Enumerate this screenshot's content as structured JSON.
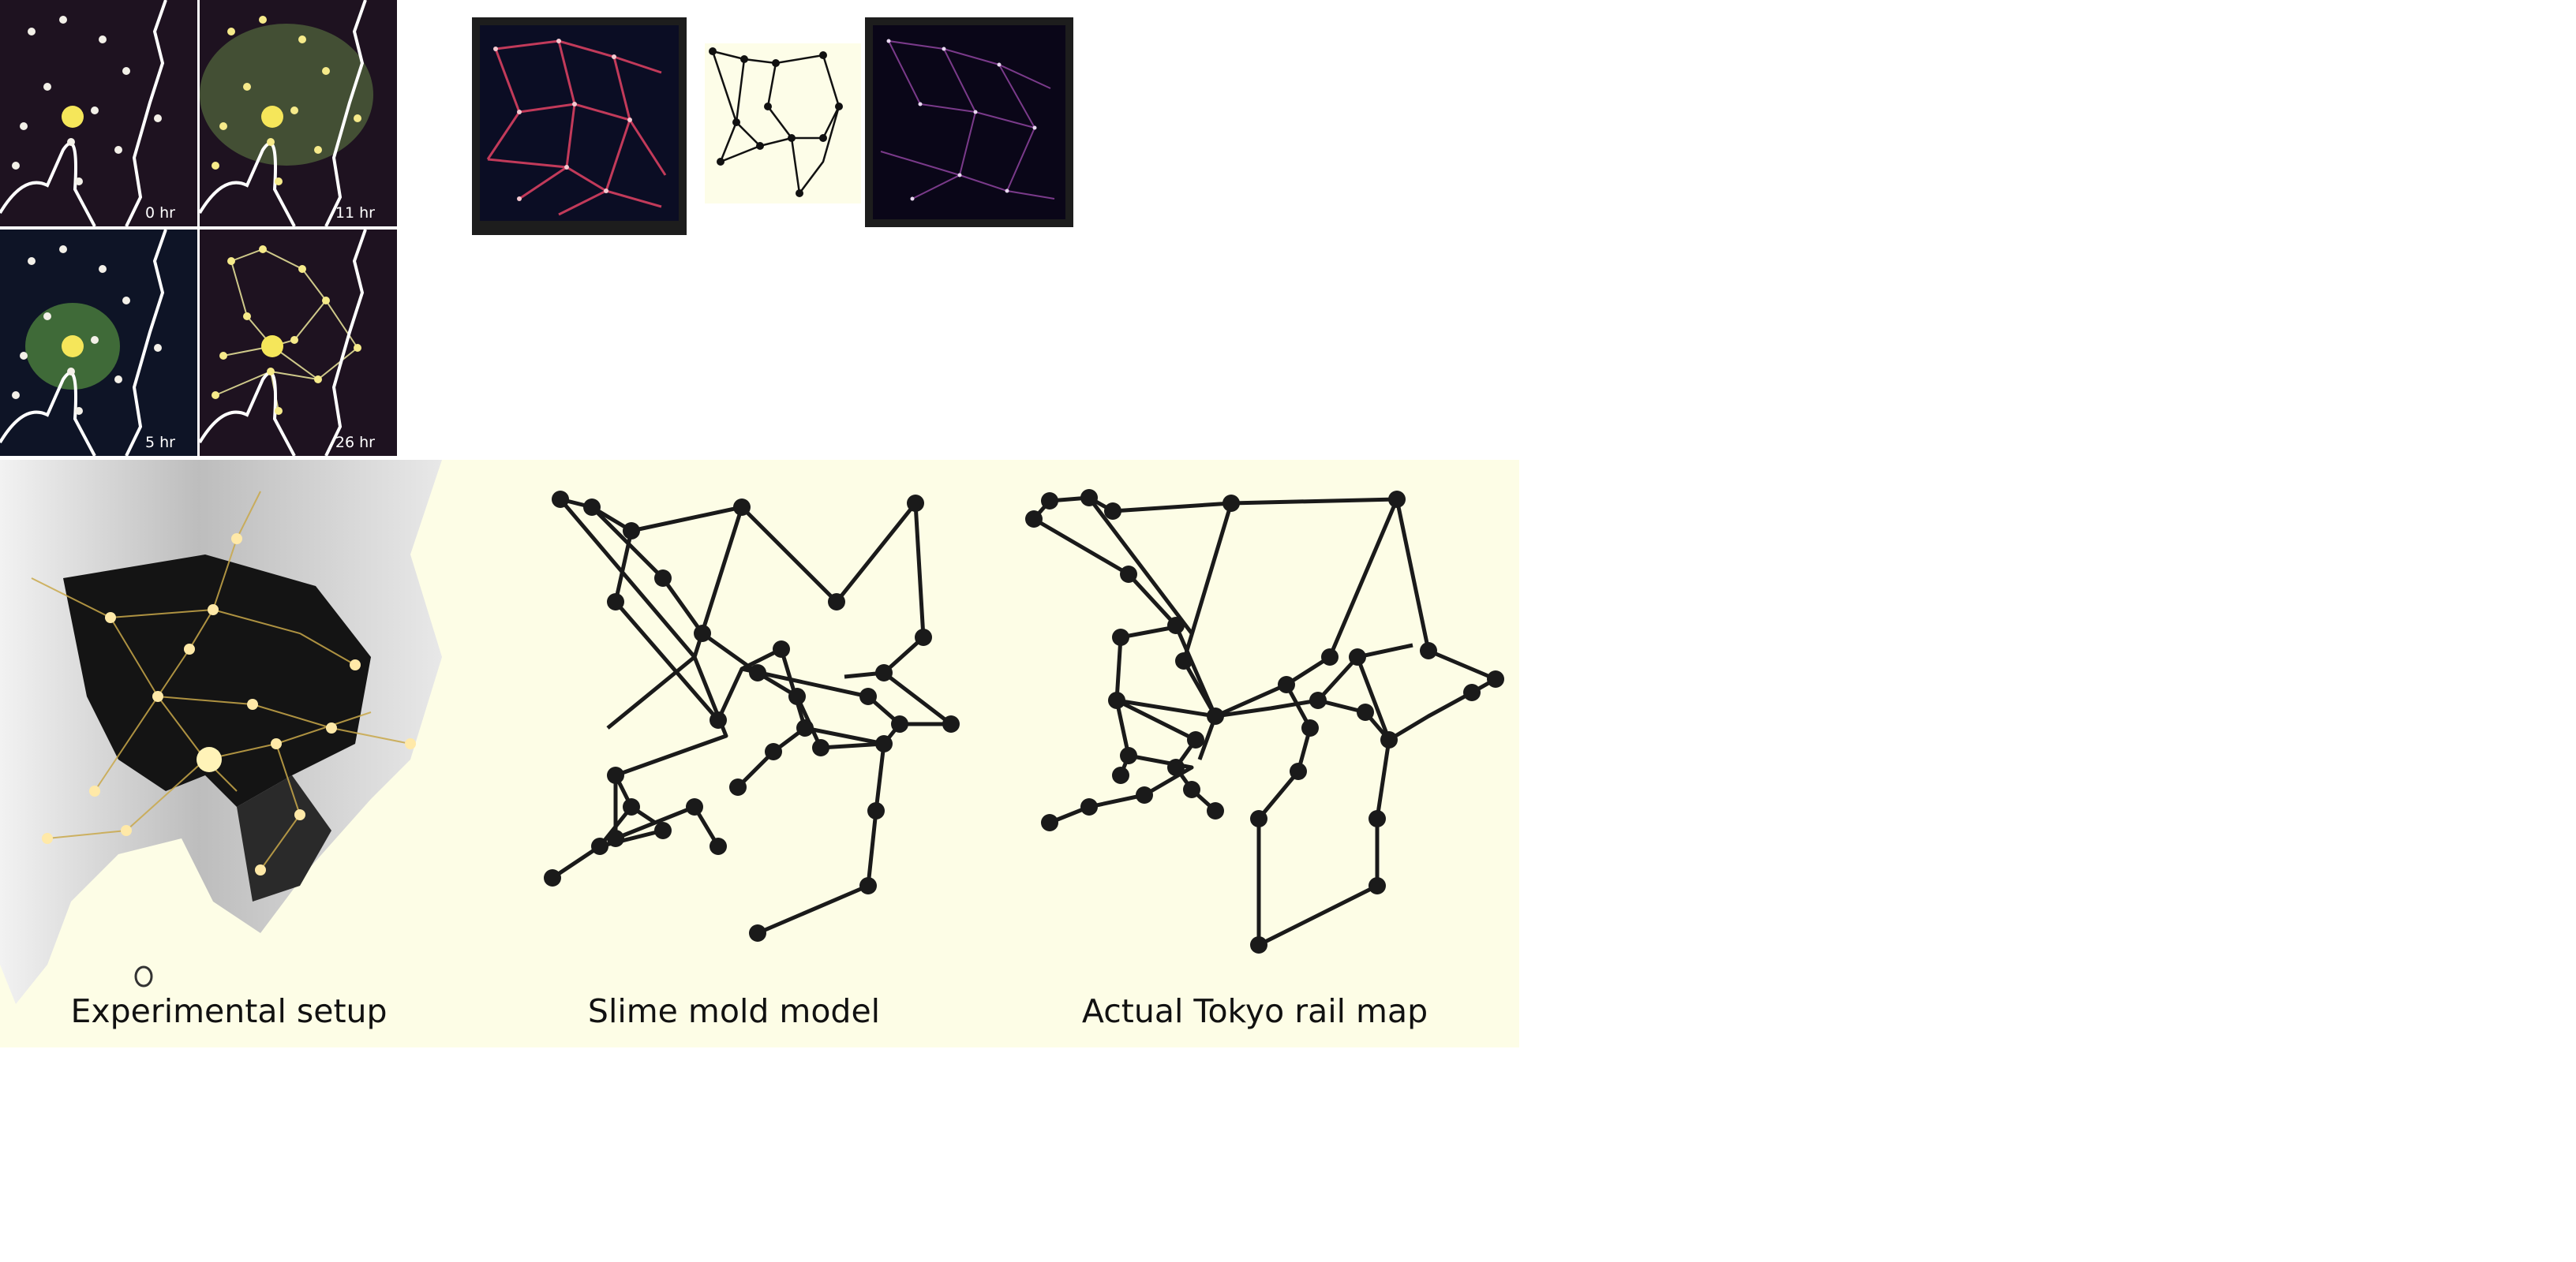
{
  "timelapse": {
    "frames": [
      {
        "label": "0 hr"
      },
      {
        "label": "11 hr"
      },
      {
        "label": "5 hr"
      },
      {
        "label": "26 hr"
      }
    ]
  },
  "captions": {
    "setup": "Experimental setup",
    "model": "Slime mold model",
    "rail": "Actual Tokyo rail map"
  },
  "colors": {
    "cream_background": "#fdfde6",
    "plate_dark": "#1e1220",
    "network_line": "#1a1a1a",
    "food_source": "#f5e65a",
    "slime_mold": "#cfd56a"
  }
}
